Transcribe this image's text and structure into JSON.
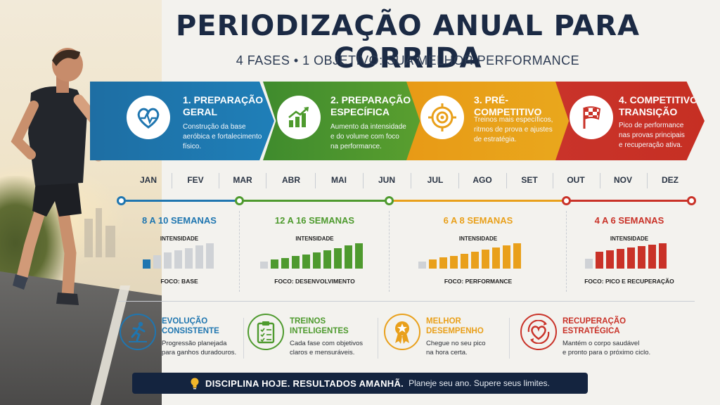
{
  "header": {
    "title": "PERIODIZAÇÃO ANUAL PARA CORRIDA",
    "subtitle": "4 FASES • 1 OBJETIVO: SUA MELHOR PERFORMANCE"
  },
  "colors": {
    "blue": "#1f76b0",
    "green": "#4e9a2e",
    "orange": "#e9a01b",
    "red": "#c93228",
    "navy": "#14243f"
  },
  "phases": [
    {
      "title_line1": "1. PREPARAÇÃO",
      "title_line2": "GERAL",
      "desc": [
        "Construção da base",
        "aeróbica e fortalecimento",
        "físico."
      ],
      "icon": "heart-pulse-icon"
    },
    {
      "title_line1": "2. PREPARAÇÃO",
      "title_line2": "ESPECÍFICA",
      "desc": [
        "Aumento da intensidade",
        "e do volume com foco",
        "na performance."
      ],
      "icon": "growth-chart-icon"
    },
    {
      "title_line1": "3. PRÉ-COMPETITIVO",
      "title_line2": "",
      "desc": [
        "Treinos mais específicos,",
        "ritmos de prova e ajustes",
        "de estratégia."
      ],
      "icon": "target-icon"
    },
    {
      "title_line1": "4. COMPETITIVO /",
      "title_line2": "TRANSIÇÃO",
      "desc": [
        "Pico de performance",
        "nas provas principais",
        "e recuperação ativa."
      ],
      "icon": "checkered-flag-icon"
    }
  ],
  "months": [
    "JAN",
    "FEV",
    "MAR",
    "ABR",
    "MAI",
    "JUN",
    "JUL",
    "AGO",
    "SET",
    "OUT",
    "NOV",
    "DEZ"
  ],
  "stats": [
    {
      "weeks": "8 A 10 SEMANAS",
      "intensity_label": "INTENSIDADE",
      "focus": "FOCO: BASE",
      "bars": [
        1,
        2,
        2.5,
        3,
        3.5,
        4,
        4.5
      ],
      "highlight_first": true
    },
    {
      "weeks": "12 A 16 SEMANAS",
      "intensity_label": "INTENSIDADE",
      "focus": "FOCO: DESENVOLVIMENTO",
      "bars": [
        1,
        1.6,
        2.2,
        2.8,
        3.4,
        4,
        4.8,
        5.6,
        6.4,
        7.2
      ]
    },
    {
      "weeks": "6 A 8 SEMANAS",
      "intensity_label": "INTENSIDADE",
      "focus": "FOCO: PERFORMANCE",
      "bars": [
        1,
        1.8,
        2.6,
        3.4,
        4.2,
        5,
        5.8,
        6.6,
        7.4,
        8.2
      ]
    },
    {
      "weeks": "4 A 6 SEMANAS",
      "intensity_label": "INTENSIDADE",
      "focus": "FOCO: PICO E RECUPERAÇÃO",
      "bars": [
        2,
        4.5,
        5,
        5.5,
        6,
        6.5,
        7,
        7.5
      ]
    }
  ],
  "benefits": [
    {
      "title_line1": "EVOLUÇÃO",
      "title_line2": "CONSISTENTE",
      "desc": [
        "Progressão planejada",
        "para ganhos duradouros."
      ],
      "icon": "runner-icon"
    },
    {
      "title_line1": "TREINOS",
      "title_line2": "INTELIGENTES",
      "desc": [
        "Cada fase com objetivos",
        "claros e mensuráveis."
      ],
      "icon": "clipboard-checklist-icon"
    },
    {
      "title_line1": "MELHOR",
      "title_line2": "DESEMPENHO",
      "desc": [
        "Chegue no seu pico",
        "na hora certa."
      ],
      "icon": "medal-icon"
    },
    {
      "title_line1": "RECUPERAÇÃO",
      "title_line2": "ESTRATÉGICA",
      "desc": [
        "Mantém o corpo saudável",
        "e pronto para o próximo ciclo."
      ],
      "icon": "recovery-heart-icon"
    }
  ],
  "banner": {
    "strong": "DISCIPLINA HOJE. RESULTADOS AMANHÃ.",
    "soft": "Planeje seu ano. Supere seus limites.",
    "icon": "lightbulb-icon"
  }
}
